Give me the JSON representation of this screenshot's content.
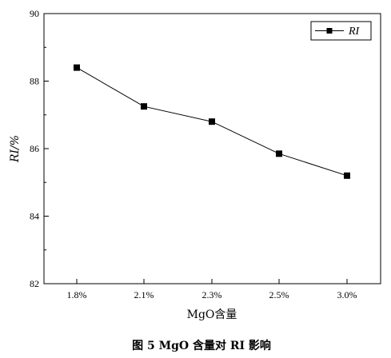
{
  "chart_data": {
    "type": "line",
    "categories": [
      "1.8%",
      "2.1%",
      "2.3%",
      "2.5%",
      "3.0%"
    ],
    "series": [
      {
        "name": "RI",
        "values": [
          88.4,
          87.25,
          86.8,
          85.85,
          85.2
        ],
        "color": "#000000",
        "marker": "square"
      }
    ],
    "xlabel": "MgO含量",
    "ylabel": "RI/%",
    "ylim": [
      82,
      90
    ],
    "yticks": [
      82,
      84,
      86,
      88,
      90
    ],
    "grid": false,
    "legend": "top-right"
  },
  "caption": "图 5   MgO 含量对 RI 影响"
}
